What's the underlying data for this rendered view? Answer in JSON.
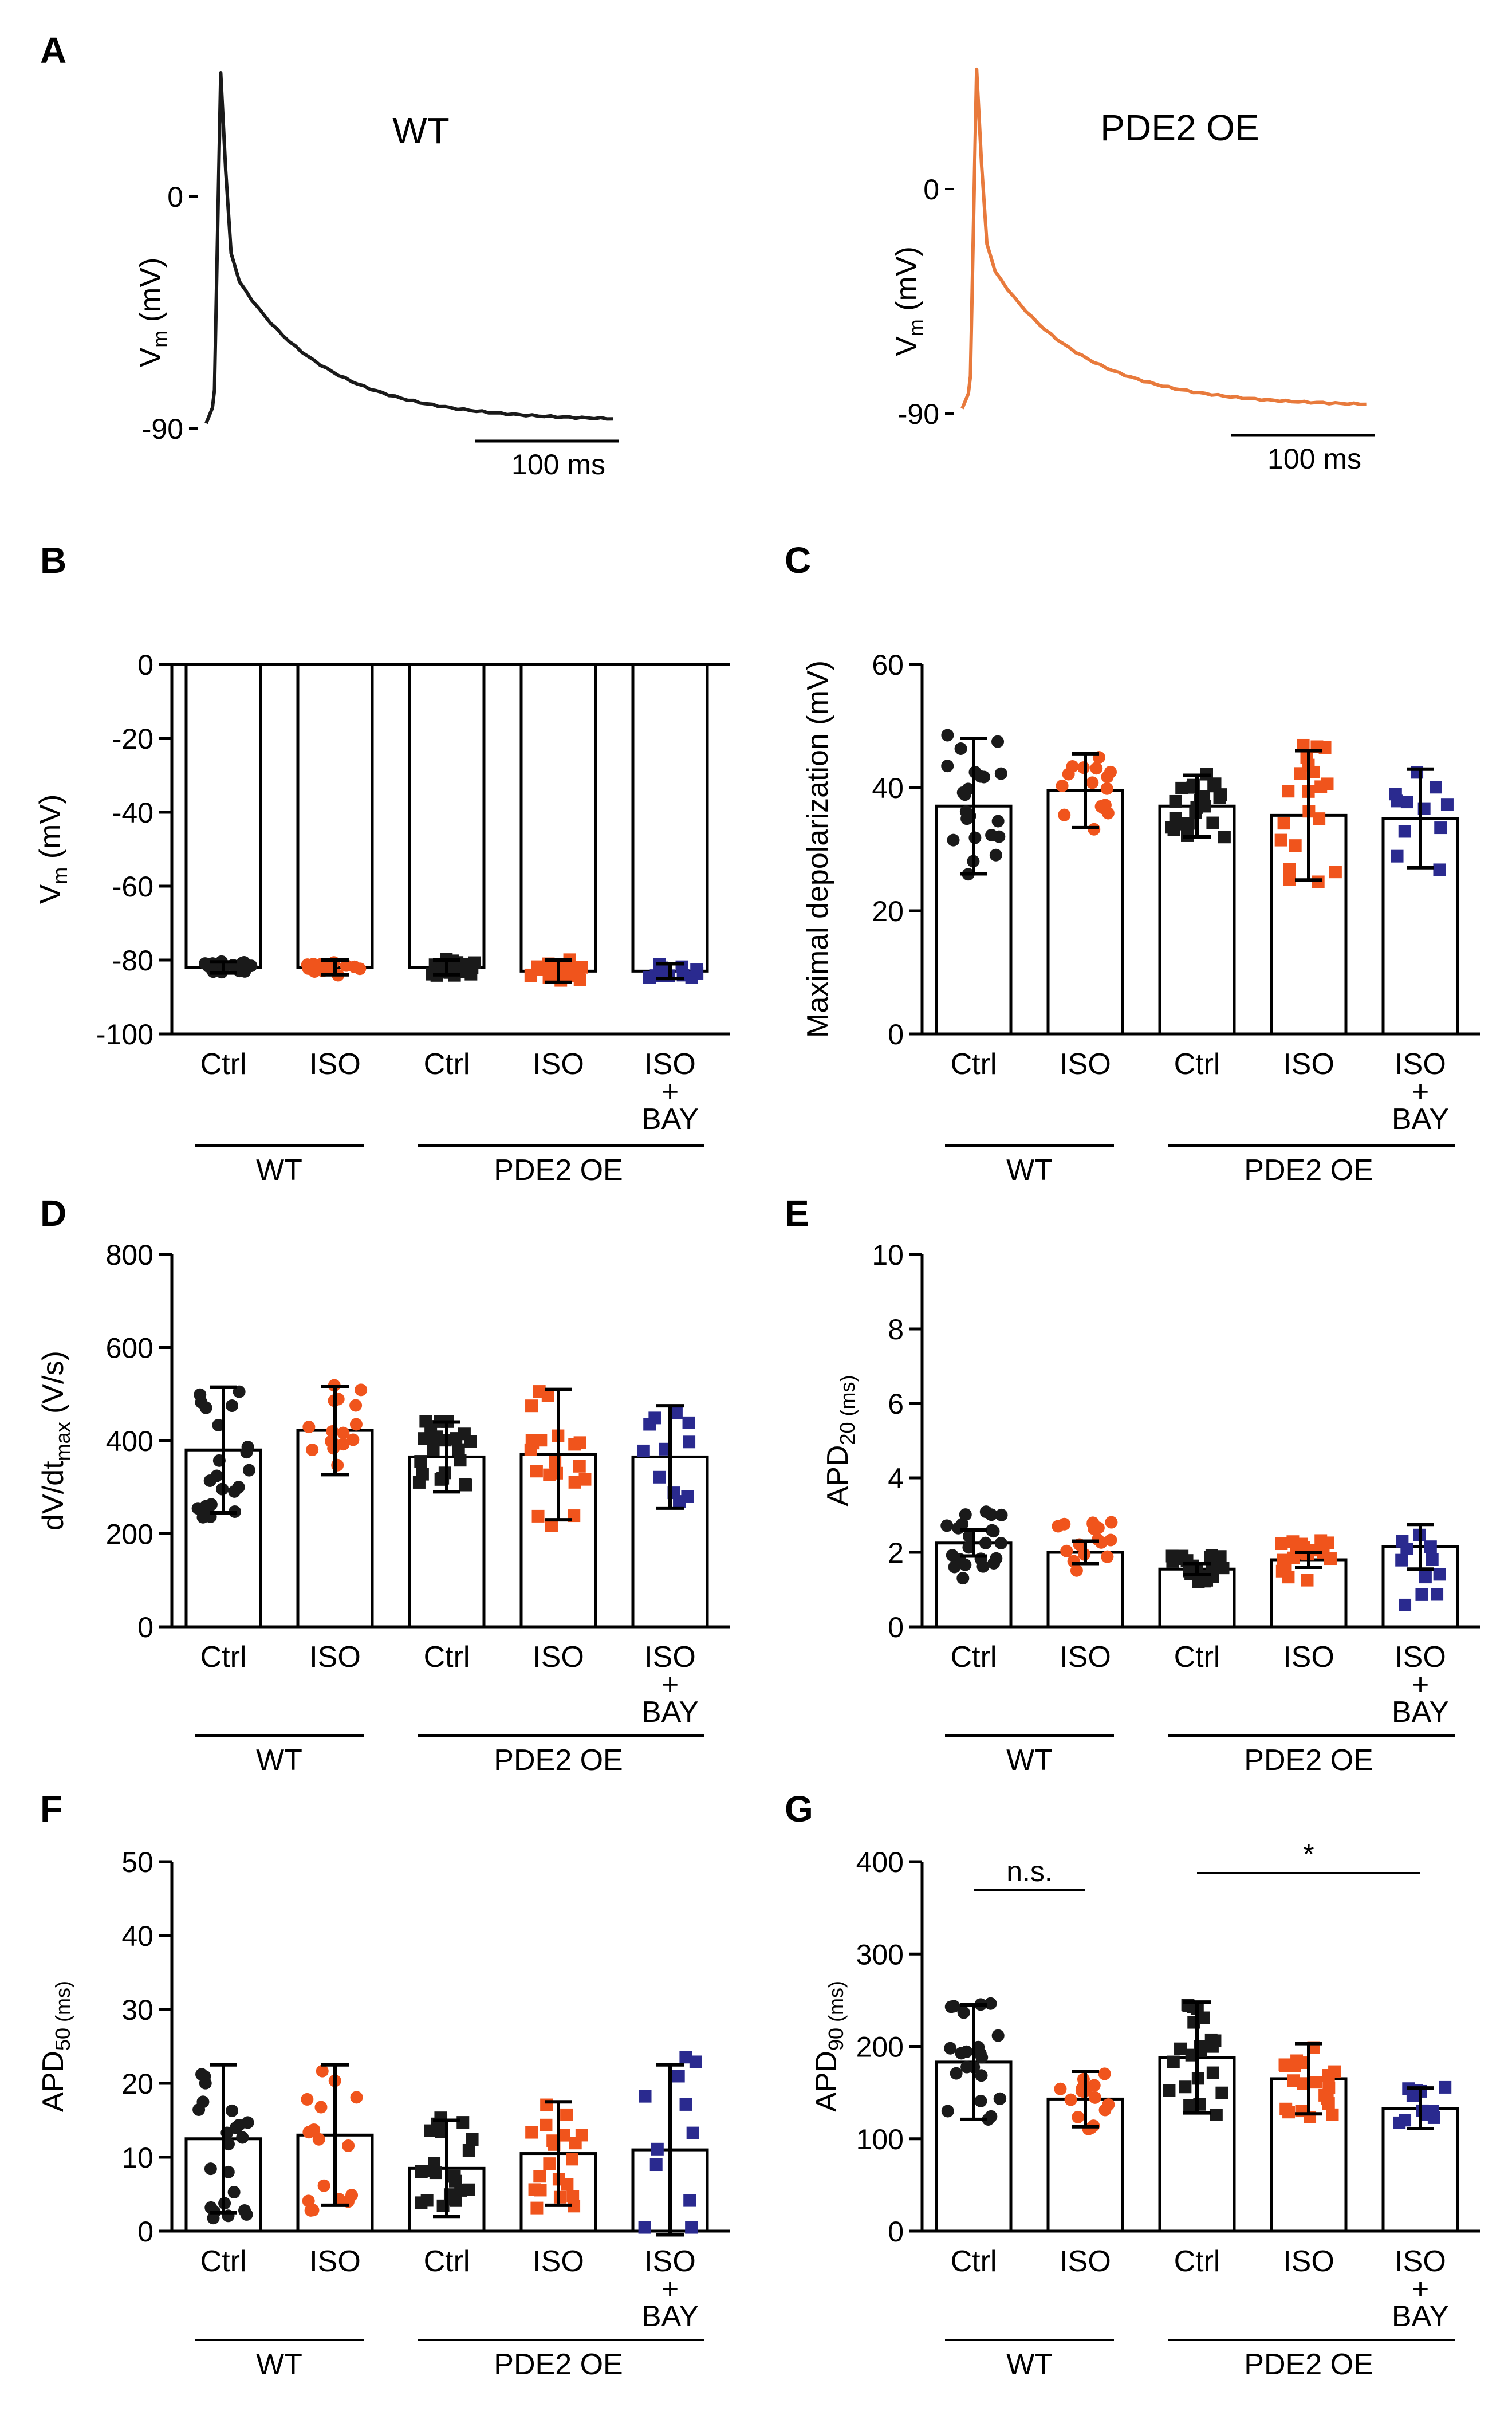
{
  "colors": {
    "wt": "#1a1a1a",
    "iso": "#f0541c",
    "bay": "#2a2a8f",
    "trace_oe": "#e87a3c"
  },
  "traces": [
    {
      "panel": "A",
      "title": "WT",
      "ylabel": "Vm (mV)",
      "ylabel_main": "V",
      "ylabel_sub": "m",
      "ylabel_rest": " (mV)",
      "ticks": [
        "0",
        "-90"
      ],
      "scalebar": "100 ms",
      "color": "#1a1a1a"
    },
    {
      "panel": "",
      "title": "PDE2 OE",
      "ylabel": "Vm (mV)",
      "ylabel_main": "V",
      "ylabel_sub": "m",
      "ylabel_rest": " (mV)",
      "ticks": [
        "0",
        "-90"
      ],
      "scalebar": "100 ms",
      "color": "#e87a3c"
    }
  ],
  "chart_data": [
    {
      "panel": "B",
      "type": "bar",
      "ylabel_main": "V",
      "ylabel_sub": "m",
      "ylabel_rest": " (mV)",
      "ylim": [
        -100,
        0
      ],
      "yticks": [
        0,
        -20,
        -40,
        -60,
        -80,
        -100
      ],
      "yticklabels": [
        "0",
        "-20",
        "-40",
        "-60",
        "-80",
        "-100"
      ],
      "categories": [
        "Ctrl",
        "ISO",
        "Ctrl",
        "ISO",
        "ISO + BAY"
      ],
      "groups": [
        "WT",
        "PDE2 OE"
      ],
      "means": [
        -82,
        -82,
        -82,
        -83,
        -83
      ],
      "err": [
        1.5,
        2,
        2,
        3,
        2
      ]
    },
    {
      "panel": "C",
      "type": "bar",
      "ylabel_main": "Maximal depolarization",
      "ylabel_sub": "",
      "ylabel_rest": " (mV)",
      "ylim": [
        0,
        60
      ],
      "yticks": [
        0,
        20,
        40,
        60
      ],
      "yticklabels": [
        "0",
        "20",
        "40",
        "60"
      ],
      "categories": [
        "Ctrl",
        "ISO",
        "Ctrl",
        "ISO",
        "ISO + BAY"
      ],
      "groups": [
        "WT",
        "PDE2 OE"
      ],
      "means": [
        37,
        39.5,
        37,
        35.5,
        35
      ],
      "err": [
        11,
        6,
        5,
        10.5,
        8
      ]
    },
    {
      "panel": "D",
      "type": "bar",
      "ylabel_main": "dV/dt",
      "ylabel_sub": "max",
      "ylabel_rest": " (V/s)",
      "ylim": [
        0,
        800
      ],
      "yticks": [
        0,
        200,
        400,
        600,
        800
      ],
      "yticklabels": [
        "0",
        "200",
        "400",
        "600",
        "800"
      ],
      "categories": [
        "Ctrl",
        "ISO",
        "Ctrl",
        "ISO",
        "ISO + BAY"
      ],
      "groups": [
        "WT",
        "PDE2 OE"
      ],
      "means": [
        380,
        422,
        365,
        370,
        365
      ],
      "err": [
        135,
        95,
        75,
        140,
        110
      ]
    },
    {
      "panel": "E",
      "type": "bar",
      "ylabel_main": "APD",
      "ylabel_sub": "20 (ms)",
      "ylabel_rest": "",
      "ylim": [
        0,
        10
      ],
      "yticks": [
        0,
        2,
        4,
        6,
        8,
        10
      ],
      "yticklabels": [
        "0",
        "2",
        "4",
        "6",
        "8",
        "10"
      ],
      "categories": [
        "Ctrl",
        "ISO",
        "Ctrl",
        "ISO",
        "ISO + BAY"
      ],
      "groups": [
        "WT",
        "PDE2 OE"
      ],
      "means": [
        2.25,
        2.0,
        1.55,
        1.8,
        2.15
      ],
      "err": [
        0.35,
        0.3,
        0.15,
        0.2,
        0.6
      ]
    },
    {
      "panel": "F",
      "type": "bar",
      "ylabel_main": "APD",
      "ylabel_sub": "50 (ms)",
      "ylabel_rest": "",
      "ylim": [
        0,
        50
      ],
      "yticks": [
        0,
        10,
        20,
        30,
        40,
        50
      ],
      "yticklabels": [
        "0",
        "10",
        "20",
        "30",
        "40",
        "50"
      ],
      "categories": [
        "Ctrl",
        "ISO",
        "Ctrl",
        "ISO",
        "ISO + BAY"
      ],
      "groups": [
        "WT",
        "PDE2 OE"
      ],
      "means": [
        12.5,
        13,
        8.5,
        10.5,
        11
      ],
      "err": [
        10,
        9.5,
        6.5,
        7,
        11.5
      ]
    },
    {
      "panel": "G",
      "type": "bar",
      "ylabel_main": "APD",
      "ylabel_sub": "90 (ms)",
      "ylabel_rest": "",
      "ylim": [
        0,
        400
      ],
      "yticks": [
        0,
        100,
        200,
        300,
        400
      ],
      "yticklabels": [
        "0",
        "100",
        "200",
        "300",
        "400"
      ],
      "categories": [
        "Ctrl",
        "ISO",
        "Ctrl",
        "ISO",
        "ISO + BAY"
      ],
      "groups": [
        "WT",
        "PDE2 OE"
      ],
      "means": [
        183,
        143,
        188,
        165,
        133
      ],
      "err": [
        62,
        30,
        60,
        38,
        22
      ],
      "annotations": [
        {
          "text": "n.s.",
          "from": 0,
          "to": 1
        },
        {
          "text": "*",
          "from": 2,
          "to": 4
        }
      ]
    }
  ]
}
